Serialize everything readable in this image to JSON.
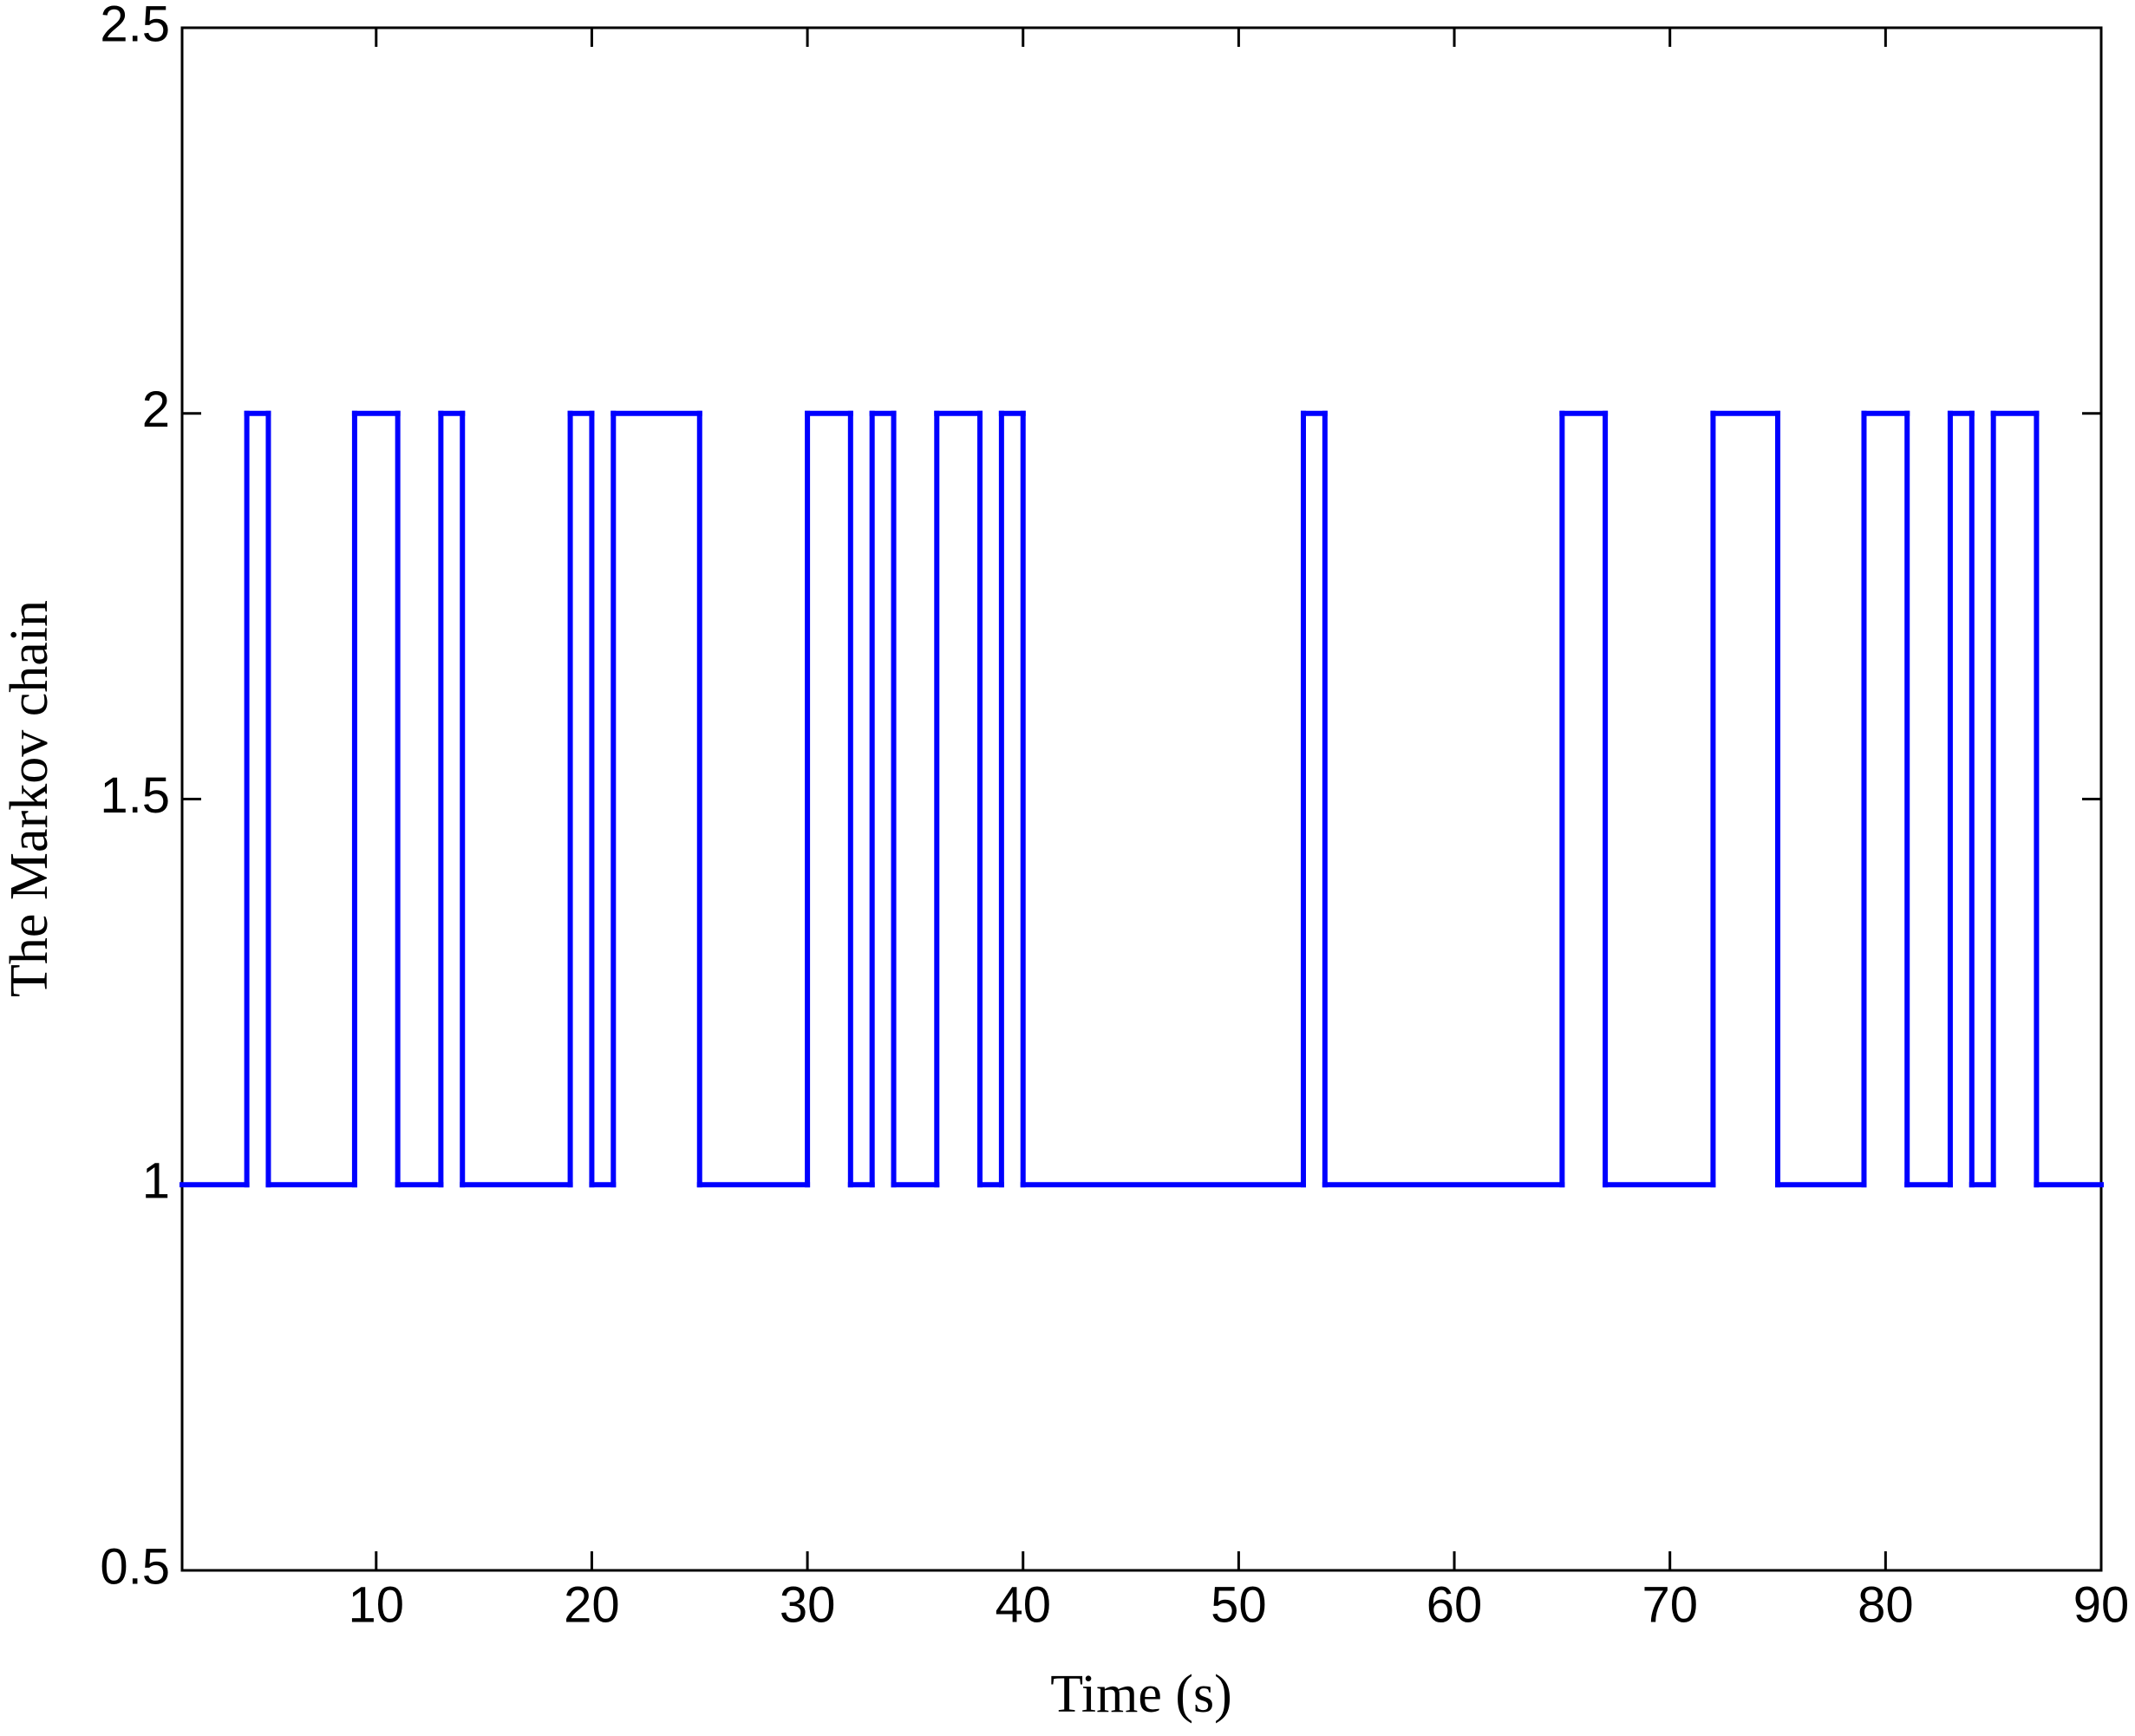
{
  "chart_data": {
    "type": "line",
    "step": "post",
    "xlabel": "Time (s)",
    "ylabel": "The Markov chain",
    "x": [
      1,
      4,
      5,
      9,
      11,
      13,
      14,
      19,
      20,
      21,
      25,
      30,
      32,
      33,
      34,
      36,
      38,
      39,
      40,
      53,
      54,
      65,
      67,
      72,
      75,
      79,
      81,
      83,
      84,
      85,
      87,
      90
    ],
    "series": [
      {
        "color": "#0000ff",
        "values": [
          1,
          2,
          1,
          2,
          1,
          2,
          1,
          2,
          1,
          2,
          1,
          2,
          1,
          2,
          1,
          2,
          1,
          2,
          1,
          2,
          1,
          2,
          1,
          2,
          1,
          2,
          1,
          2,
          1,
          2,
          1,
          1
        ]
      }
    ],
    "xlim": [
      1,
      90
    ],
    "xticks": [
      10,
      20,
      30,
      40,
      50,
      60,
      70,
      80,
      90
    ],
    "ylim": [
      0.5,
      2.5
    ],
    "yticks": [
      0.5,
      1,
      1.5,
      2,
      2.5
    ],
    "grid": false
  }
}
